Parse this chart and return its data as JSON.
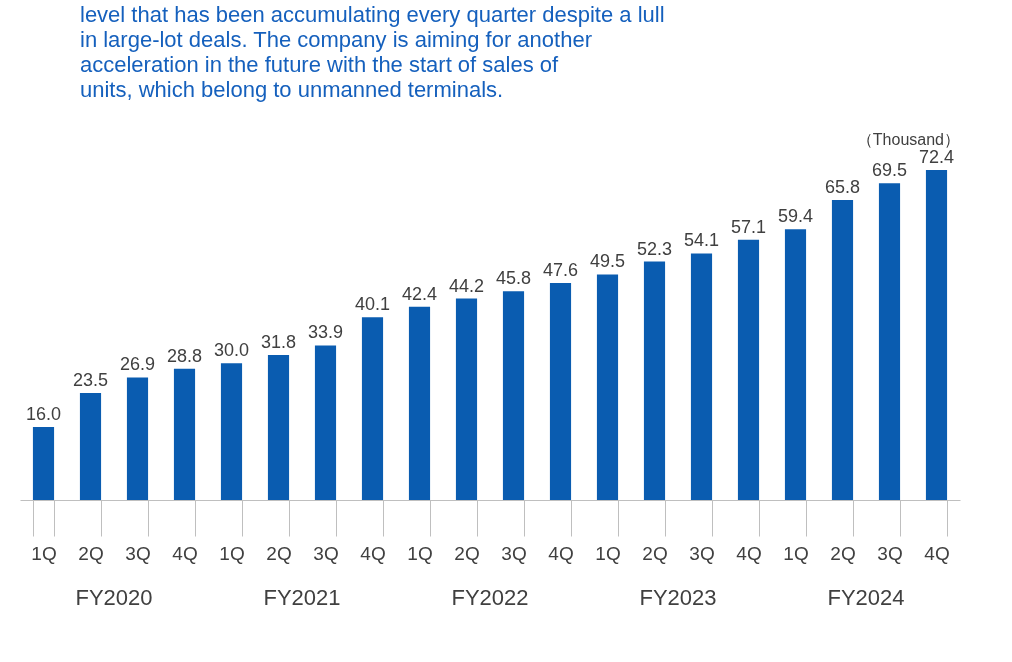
{
  "chart_data": {
    "type": "bar",
    "title": "level that has been accumulating every quarter despite a lull\nin large-lot deals. The company is aiming for another\nacceleration in the future with the start of sales of\nunits, which belong to unmanned terminals.",
    "ylabel": "（Thousand）",
    "categories": [
      "1Q",
      "2Q",
      "3Q",
      "4Q",
      "1Q",
      "2Q",
      "3Q",
      "4Q",
      "1Q",
      "2Q",
      "3Q",
      "4Q",
      "1Q",
      "2Q",
      "3Q",
      "4Q",
      "1Q",
      "2Q",
      "3Q",
      "4Q"
    ],
    "values": [
      16.0,
      23.5,
      26.9,
      28.8,
      30.0,
      31.8,
      33.9,
      40.1,
      42.4,
      44.2,
      45.8,
      47.6,
      49.5,
      52.3,
      54.1,
      57.1,
      59.4,
      65.8,
      69.5,
      72.4
    ],
    "color": "#0a5cb0",
    "value_labels": [
      "16.0",
      "23.5",
      "26.9",
      "28.8",
      "30.0",
      "31.8",
      "33.9",
      "40.1",
      "42.4",
      "44.2",
      "45.8",
      "47.6",
      "49.5",
      "52.3",
      "54.1",
      "57.1",
      "59.4",
      "65.8",
      "69.5",
      "72.4"
    ],
    "annotations": [
      "FY2020",
      "FY2021",
      "FY2022",
      "FY2023",
      "FY2024"
    ]
  }
}
